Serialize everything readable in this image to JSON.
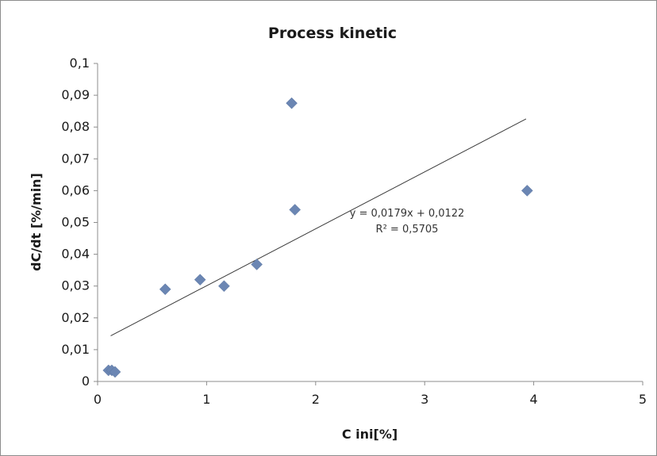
{
  "chart_data": {
    "type": "scatter",
    "title": "Process kinetic",
    "xlabel": "C ini[%]",
    "ylabel": "dC/dt  [%/min]",
    "xlim": [
      0,
      5
    ],
    "ylim": [
      0,
      0.1
    ],
    "x_ticks": [
      "0",
      "1",
      "2",
      "3",
      "4",
      "5"
    ],
    "y_ticks": [
      "0",
      "0,01",
      "0,02",
      "0,03",
      "0,04",
      "0,05",
      "0,06",
      "0,07",
      "0,08",
      "0,09",
      "0,1"
    ],
    "grid": false,
    "series": [
      {
        "marker": "diamond",
        "color": "#6b86b3",
        "x": [
          0.1,
          0.13,
          0.16,
          0.62,
          0.94,
          1.16,
          1.46,
          1.78,
          1.81,
          3.94
        ],
        "y": [
          0.0035,
          0.0035,
          0.003,
          0.029,
          0.032,
          0.03,
          0.0368,
          0.0875,
          0.054,
          0.06
        ]
      }
    ],
    "trendline": {
      "slope": 0.0179,
      "intercept": 0.0122,
      "x_range": [
        0.12,
        3.93
      ],
      "color": "#3a3a3a",
      "equation": "y = 0,0179x + 0,0122",
      "r_squared": "R² = 0,5705"
    }
  }
}
